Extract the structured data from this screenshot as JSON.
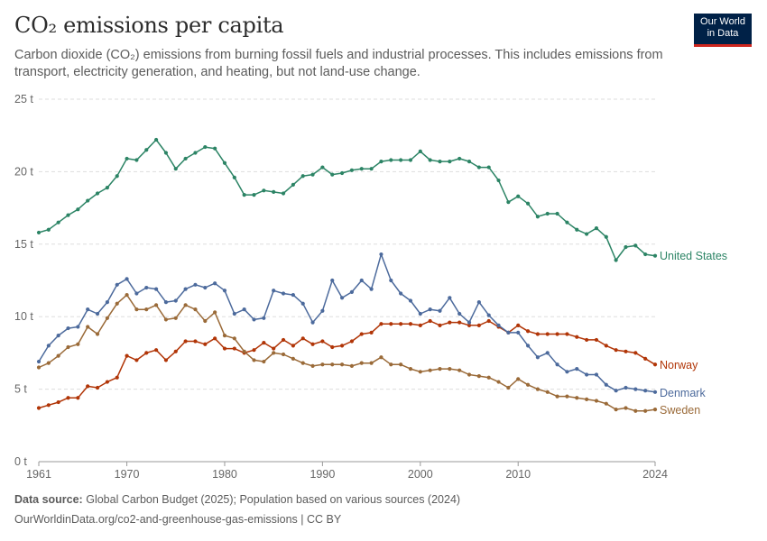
{
  "header": {
    "title": "CO₂ emissions per capita",
    "subtitle": "Carbon dioxide (CO₂) emissions from burning fossil fuels and industrial processes. This includes emissions from transport, electricity generation, and heating, but not land-use change."
  },
  "logo": {
    "line1": "Our World",
    "line2": "in Data"
  },
  "footer": {
    "source_label": "Data source:",
    "source_text": "Global Carbon Budget (2025); Population based on various sources (2024)",
    "url_text": "OurWorldinData.org/co2-and-greenhouse-gas-emissions | CC BY"
  },
  "chart_data": {
    "type": "line",
    "title": "CO₂ emissions per capita",
    "xlim": [
      1961,
      2024
    ],
    "ylim": [
      0,
      25
    ],
    "x_ticks": [
      1961,
      1970,
      1980,
      1990,
      2000,
      2010,
      2024
    ],
    "y_ticks": [
      0,
      5,
      10,
      15,
      20,
      25
    ],
    "y_tick_labels": [
      "0 t",
      "5 t",
      "10 t",
      "15 t",
      "20 t",
      "25 t"
    ],
    "grid": true,
    "legend": "end-of-line labels",
    "x": [
      1961,
      1962,
      1963,
      1964,
      1965,
      1966,
      1967,
      1968,
      1969,
      1970,
      1971,
      1972,
      1973,
      1974,
      1975,
      1976,
      1977,
      1978,
      1979,
      1980,
      1981,
      1982,
      1983,
      1984,
      1985,
      1986,
      1987,
      1988,
      1989,
      1990,
      1991,
      1992,
      1993,
      1994,
      1995,
      1996,
      1997,
      1998,
      1999,
      2000,
      2001,
      2002,
      2003,
      2004,
      2005,
      2006,
      2007,
      2008,
      2009,
      2010,
      2011,
      2012,
      2013,
      2014,
      2015,
      2016,
      2017,
      2018,
      2019,
      2020,
      2021,
      2022,
      2023,
      2024
    ],
    "series": [
      {
        "name": "United States",
        "color": "#2c8465",
        "values": [
          15.8,
          16.0,
          16.5,
          17.0,
          17.4,
          18.0,
          18.5,
          18.9,
          19.7,
          20.9,
          20.8,
          21.5,
          22.2,
          21.3,
          20.2,
          20.9,
          21.3,
          21.7,
          21.6,
          20.6,
          19.6,
          18.4,
          18.4,
          18.7,
          18.6,
          18.5,
          19.1,
          19.7,
          19.8,
          20.3,
          19.8,
          19.9,
          20.1,
          20.2,
          20.2,
          20.7,
          20.8,
          20.8,
          20.8,
          21.4,
          20.8,
          20.7,
          20.7,
          20.9,
          20.7,
          20.3,
          20.3,
          19.4,
          17.9,
          18.3,
          17.8,
          16.9,
          17.1,
          17.1,
          16.5,
          16.0,
          15.7,
          16.1,
          15.5,
          13.9,
          14.8,
          14.9,
          14.3,
          14.2
        ]
      },
      {
        "name": "Norway",
        "color": "#b13507",
        "values": [
          3.7,
          3.9,
          4.1,
          4.4,
          4.4,
          5.2,
          5.1,
          5.5,
          5.8,
          7.3,
          7.0,
          7.5,
          7.7,
          7.0,
          7.6,
          8.3,
          8.3,
          8.1,
          8.5,
          7.8,
          7.8,
          7.5,
          7.7,
          8.2,
          7.8,
          8.4,
          8.0,
          8.5,
          8.1,
          8.3,
          7.9,
          8.0,
          8.3,
          8.8,
          8.9,
          9.5,
          9.5,
          9.5,
          9.5,
          9.4,
          9.7,
          9.4,
          9.6,
          9.6,
          9.4,
          9.4,
          9.7,
          9.3,
          8.9,
          9.4,
          9.0,
          8.8,
          8.8,
          8.8,
          8.8,
          8.6,
          8.4,
          8.4,
          8.0,
          7.7,
          7.6,
          7.5,
          7.1,
          6.7
        ]
      },
      {
        "name": "Denmark",
        "color": "#4c6a9c",
        "values": [
          6.9,
          8.0,
          8.7,
          9.2,
          9.3,
          10.5,
          10.2,
          11.0,
          12.2,
          12.6,
          11.6,
          12.0,
          11.9,
          11.0,
          11.1,
          11.9,
          12.2,
          12.0,
          12.3,
          11.8,
          10.2,
          10.5,
          9.8,
          9.9,
          11.8,
          11.6,
          11.5,
          10.9,
          9.6,
          10.4,
          12.5,
          11.3,
          11.7,
          12.5,
          11.9,
          14.3,
          12.5,
          11.6,
          11.1,
          10.2,
          10.5,
          10.4,
          11.3,
          10.2,
          9.6,
          11.0,
          10.1,
          9.4,
          8.9,
          8.9,
          8.0,
          7.2,
          7.5,
          6.7,
          6.2,
          6.4,
          6.0,
          6.0,
          5.3,
          4.9,
          5.1,
          5.0,
          4.9,
          4.8
        ]
      },
      {
        "name": "Sweden",
        "color": "#9a6a38",
        "values": [
          6.5,
          6.8,
          7.3,
          7.9,
          8.1,
          9.3,
          8.8,
          9.9,
          10.9,
          11.5,
          10.5,
          10.5,
          10.8,
          9.8,
          9.9,
          10.8,
          10.5,
          9.7,
          10.3,
          8.7,
          8.5,
          7.6,
          7.0,
          6.9,
          7.5,
          7.4,
          7.1,
          6.8,
          6.6,
          6.7,
          6.7,
          6.7,
          6.6,
          6.8,
          6.8,
          7.2,
          6.7,
          6.7,
          6.4,
          6.2,
          6.3,
          6.4,
          6.4,
          6.3,
          6.0,
          5.9,
          5.8,
          5.5,
          5.1,
          5.7,
          5.3,
          5.0,
          4.8,
          4.5,
          4.5,
          4.4,
          4.3,
          4.2,
          4.0,
          3.6,
          3.7,
          3.5,
          3.5,
          3.6
        ]
      }
    ]
  }
}
